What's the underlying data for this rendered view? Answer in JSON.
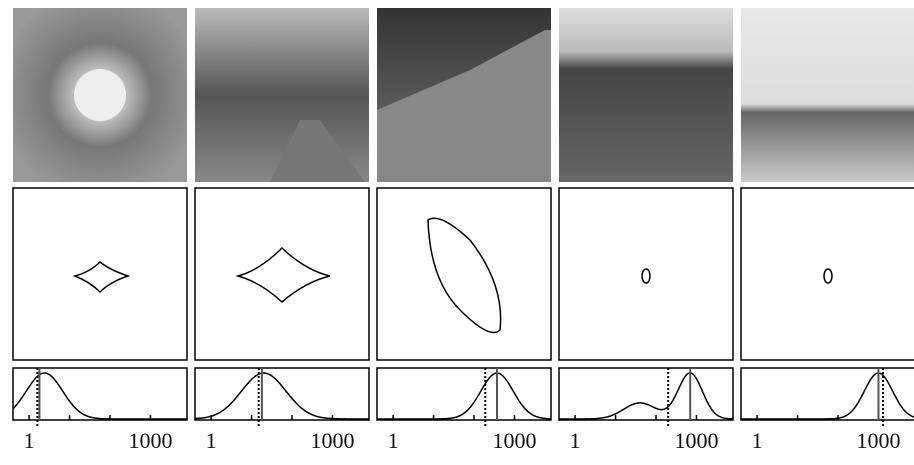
{
  "panels": [
    {
      "xlim": [
        0.4,
        8000
      ],
      "xticks": [
        1,
        1000
      ],
      "minor_xticks": [
        10,
        100
      ],
      "solid_line": 1.8,
      "dotted_line": 1.6,
      "density": [
        {
          "center": 2.4,
          "spread": 0.45,
          "weight": 1
        }
      ]
    },
    {
      "xlim": [
        0.4,
        8000
      ],
      "xticks": [
        1,
        1000
      ],
      "minor_xticks": [
        10,
        100
      ],
      "solid_line": 18,
      "dotted_line": 15,
      "density": [
        {
          "center": 20,
          "spread": 0.55,
          "weight": 1
        }
      ]
    },
    {
      "xlim": [
        0.4,
        8000
      ],
      "xticks": [
        1,
        1000
      ],
      "minor_xticks": [
        10,
        100
      ],
      "solid_line": 370,
      "dotted_line": 190,
      "density": [
        {
          "center": 370,
          "spread": 0.4,
          "weight": 1
        }
      ]
    },
    {
      "xlim": [
        0.4,
        8000
      ],
      "xticks": [
        1,
        1000
      ],
      "minor_xticks": [
        10,
        100
      ],
      "solid_line": 700,
      "dotted_line": 200,
      "density": [
        {
          "center": 700,
          "spread": 0.3,
          "weight": 1
        },
        {
          "center": 40,
          "spread": 0.4,
          "weight": 0.35
        }
      ]
    },
    {
      "xlim": [
        0.4,
        8000
      ],
      "xticks": [
        1,
        1000
      ],
      "minor_xticks": [
        10,
        100
      ],
      "solid_line": 1000,
      "dotted_line": 1300,
      "density": [
        {
          "center": 1000,
          "spread": 0.35,
          "weight": 1
        }
      ]
    }
  ]
}
